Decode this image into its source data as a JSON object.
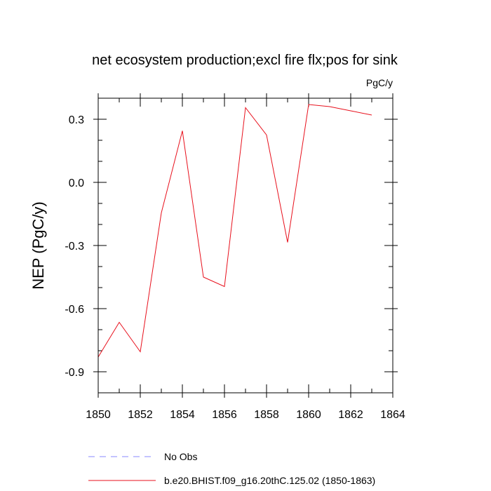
{
  "chart_data": {
    "type": "line",
    "title": "net ecosystem production;excl fire flx;pos for sink",
    "units": "PgC/y",
    "ylabel": "NEP  (PgC/y)",
    "xlabel": "",
    "xlim": [
      1850,
      1864
    ],
    "ylim": [
      -1.0,
      0.4
    ],
    "x_ticks": [
      1850,
      1852,
      1854,
      1856,
      1858,
      1860,
      1862,
      1864
    ],
    "x_tick_labels": [
      "1850",
      "1852",
      "1854",
      "1856",
      "1858",
      "1860",
      "1862",
      "1864"
    ],
    "y_ticks": [
      -0.9,
      -0.6,
      -0.3,
      0.0,
      0.3
    ],
    "y_tick_labels": [
      "-0.9",
      "-0.6",
      "-0.3",
      "0.0",
      "0.3"
    ],
    "grid": false,
    "series": [
      {
        "name": "b.e20.BHIST.f09_g16.20thC.125.02 (1850-1863)",
        "color": "#e8101c",
        "style": "solid",
        "x": [
          1850,
          1851,
          1852,
          1853,
          1854,
          1855,
          1856,
          1857,
          1858,
          1859,
          1860,
          1861,
          1862,
          1863
        ],
        "values": [
          -0.83,
          -0.665,
          -0.805,
          -0.145,
          0.245,
          -0.45,
          -0.495,
          0.355,
          0.225,
          -0.285,
          0.37,
          0.36,
          0.34,
          0.32
        ]
      }
    ],
    "legend": [
      {
        "label": "No Obs",
        "color": "#8a8aff",
        "style": "dashed"
      },
      {
        "label": "b.e20.BHIST.f09_g16.20thC.125.02 (1850-1863)",
        "color": "#e8101c",
        "style": "solid"
      }
    ],
    "legend_position": "bottom"
  }
}
